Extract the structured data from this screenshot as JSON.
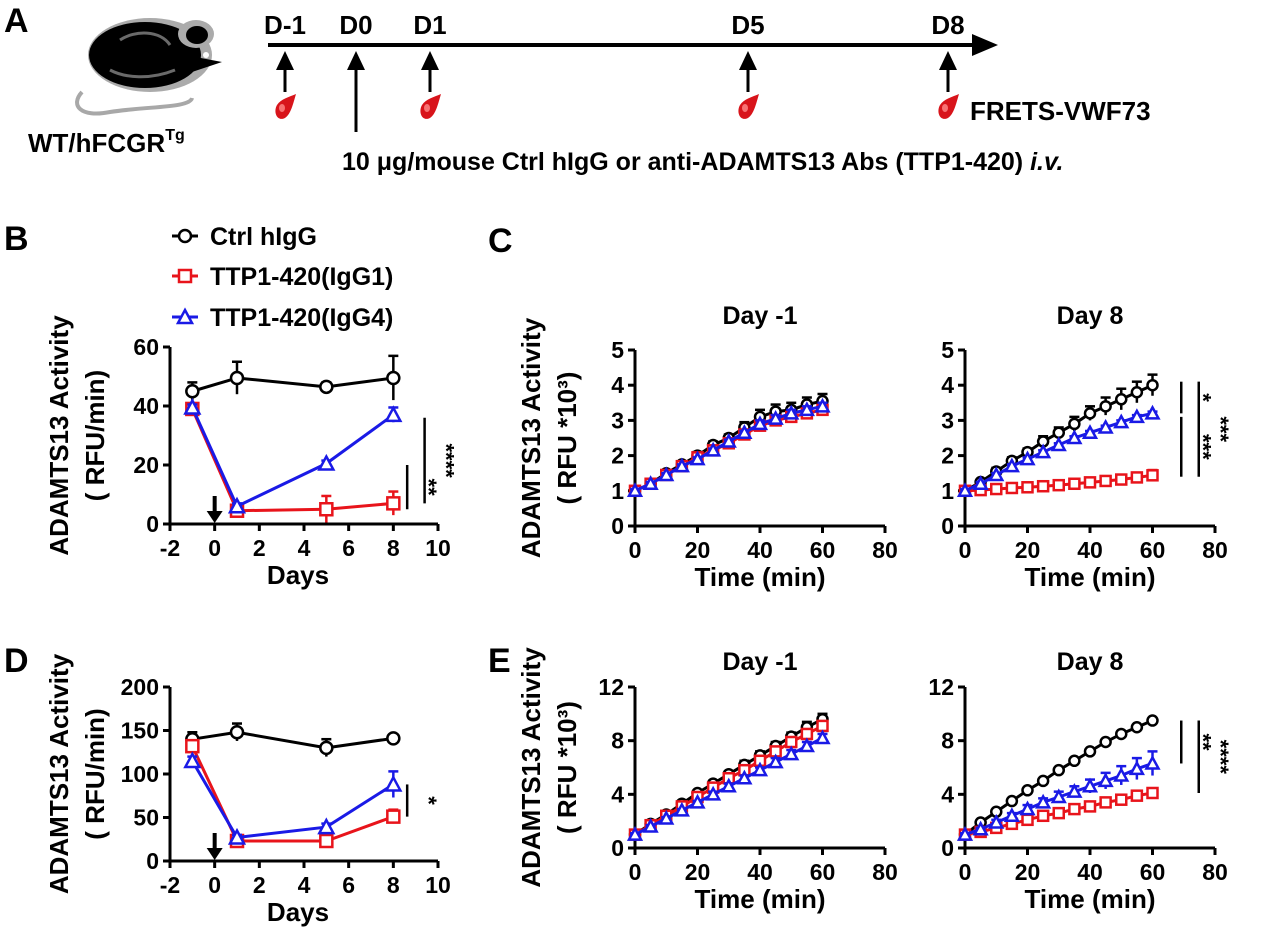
{
  "colors": {
    "ctrl": "#000000",
    "igg1": "#e8141b",
    "igg4": "#1a1ae6",
    "drop": "#d8141b"
  },
  "panel_a": {
    "letter": "A",
    "mouse_label_main": "WT/hFCGR",
    "mouse_label_sup": "Tg",
    "days": [
      "D-1",
      "D0",
      "D1",
      "D5",
      "D8"
    ],
    "drop_label": "FRETS-VWF73",
    "injection_text": "10 μg/mouse Ctrl hIgG or anti-ADAMTS13 Abs (TTP1-420)",
    "injection_suffix": "i.v."
  },
  "legend": [
    {
      "label": "Ctrl hIgG",
      "key": "ctrl"
    },
    {
      "label": "TTP1-420(IgG1)",
      "key": "igg1"
    },
    {
      "label": "TTP1-420(IgG4)",
      "key": "igg4"
    }
  ],
  "chart_data": [
    {
      "id": "B",
      "letter": "B",
      "type": "line",
      "xlabel": "Days",
      "ylabel": "ADAMTS13 Activity",
      "ylabel2": "( RFU/min)",
      "xlim": [
        -2,
        10
      ],
      "ylim": [
        0,
        60
      ],
      "xticks": [
        -2,
        0,
        2,
        4,
        6,
        8,
        10
      ],
      "yticks": [
        0,
        20,
        40,
        60
      ],
      "arrow_at_x": 0,
      "series": [
        {
          "name": "Ctrl hIgG",
          "key": "ctrl",
          "x": [
            -1,
            1,
            5,
            8
          ],
          "y": [
            45,
            49.5,
            46.5,
            49.5
          ],
          "err": [
            3,
            5.5,
            1.5,
            7.5
          ]
        },
        {
          "name": "TTP1-420(IgG1)",
          "key": "igg1",
          "x": [
            -1,
            1,
            5,
            8
          ],
          "y": [
            39,
            4.5,
            5,
            7
          ],
          "err": [
            1.5,
            2,
            4.5,
            4
          ]
        },
        {
          "name": "TTP1-420(IgG4)",
          "key": "igg4",
          "x": [
            -1,
            1,
            5,
            8
          ],
          "y": [
            39.5,
            6,
            20.5,
            37
          ],
          "err": [
            1,
            1,
            1,
            2.5
          ]
        }
      ],
      "significance": [
        {
          "label": "**",
          "x_frac": 0.885,
          "y1": 20,
          "y2": 5
        },
        {
          "label": "****",
          "x_frac": 0.95,
          "y1": 36,
          "y2": 7
        }
      ]
    },
    {
      "id": "C1",
      "letter": "C",
      "type": "line",
      "title": "Day -1",
      "xlabel": "Time (min)",
      "ylabel": "ADAMTS13 Activity",
      "ylabel2": "( RFU *10³)",
      "xlim": [
        0,
        80
      ],
      "ylim": [
        0,
        5
      ],
      "xticks": [
        0,
        20,
        40,
        60,
        80
      ],
      "yticks": [
        0,
        1,
        2,
        3,
        4,
        5
      ],
      "series": [
        {
          "name": "Ctrl hIgG",
          "key": "ctrl",
          "x": [
            0,
            5,
            10,
            15,
            20,
            25,
            30,
            35,
            40,
            45,
            50,
            55,
            60
          ],
          "y": [
            1.0,
            1.2,
            1.5,
            1.75,
            2.0,
            2.3,
            2.5,
            2.8,
            3.1,
            3.25,
            3.3,
            3.45,
            3.55
          ],
          "err": [
            0.05,
            0.05,
            0.05,
            0.05,
            0.1,
            0.1,
            0.1,
            0.15,
            0.2,
            0.2,
            0.2,
            0.2,
            0.2
          ]
        },
        {
          "name": "TTP1-420(IgG1)",
          "key": "igg1",
          "x": [
            0,
            5,
            10,
            15,
            20,
            25,
            30,
            35,
            40,
            45,
            50,
            55,
            60
          ],
          "y": [
            1.0,
            1.2,
            1.45,
            1.7,
            1.95,
            2.15,
            2.35,
            2.6,
            2.85,
            3.0,
            3.1,
            3.2,
            3.3
          ],
          "err": [
            0.05,
            0.05,
            0.05,
            0.05,
            0.05,
            0.05,
            0.05,
            0.05,
            0.1,
            0.1,
            0.1,
            0.1,
            0.1
          ]
        },
        {
          "name": "TTP1-420(IgG4)",
          "key": "igg4",
          "x": [
            0,
            5,
            10,
            15,
            20,
            25,
            30,
            35,
            40,
            45,
            50,
            55,
            60
          ],
          "y": [
            1.0,
            1.2,
            1.45,
            1.7,
            1.9,
            2.15,
            2.4,
            2.65,
            2.9,
            3.05,
            3.2,
            3.3,
            3.4
          ],
          "err": [
            0.05,
            0.05,
            0.05,
            0.05,
            0.05,
            0.05,
            0.05,
            0.05,
            0.1,
            0.1,
            0.1,
            0.1,
            0.1
          ]
        }
      ]
    },
    {
      "id": "C2",
      "letter": "",
      "type": "line",
      "title": "Day 8",
      "xlabel": "Time (min)",
      "ylabel": "",
      "ylabel2": "",
      "xlim": [
        0,
        80
      ],
      "ylim": [
        0,
        5
      ],
      "xticks": [
        0,
        20,
        40,
        60,
        80
      ],
      "yticks": [
        0,
        1,
        2,
        3,
        4,
        5
      ],
      "series": [
        {
          "name": "Ctrl hIgG",
          "key": "ctrl",
          "x": [
            0,
            5,
            10,
            15,
            20,
            25,
            30,
            35,
            40,
            45,
            50,
            55,
            60
          ],
          "y": [
            1.0,
            1.25,
            1.55,
            1.85,
            2.1,
            2.4,
            2.65,
            2.9,
            3.2,
            3.4,
            3.6,
            3.8,
            4.0
          ],
          "err": [
            0.05,
            0.05,
            0.1,
            0.1,
            0.1,
            0.15,
            0.15,
            0.2,
            0.2,
            0.25,
            0.3,
            0.3,
            0.3
          ]
        },
        {
          "name": "TTP1-420(IgG1)",
          "key": "igg1",
          "x": [
            0,
            5,
            10,
            15,
            20,
            25,
            30,
            35,
            40,
            45,
            50,
            55,
            60
          ],
          "y": [
            1.0,
            1.02,
            1.05,
            1.08,
            1.1,
            1.13,
            1.16,
            1.2,
            1.24,
            1.28,
            1.32,
            1.38,
            1.44
          ],
          "err": [
            0.05,
            0.05,
            0.05,
            0.05,
            0.05,
            0.05,
            0.05,
            0.05,
            0.1,
            0.1,
            0.1,
            0.1,
            0.15
          ]
        },
        {
          "name": "TTP1-420(IgG4)",
          "key": "igg4",
          "x": [
            0,
            5,
            10,
            15,
            20,
            25,
            30,
            35,
            40,
            45,
            50,
            55,
            60
          ],
          "y": [
            1.0,
            1.2,
            1.45,
            1.7,
            1.9,
            2.1,
            2.3,
            2.5,
            2.65,
            2.8,
            2.95,
            3.1,
            3.2
          ],
          "err": [
            0.05,
            0.05,
            0.05,
            0.05,
            0.05,
            0.05,
            0.05,
            0.05,
            0.05,
            0.05,
            0.05,
            0.05,
            0.05
          ]
        }
      ],
      "significance": [
        {
          "label": "*",
          "x_frac": 0.865,
          "y1": 4.1,
          "y2": 3.2
        },
        {
          "label": "***",
          "x_frac": 0.865,
          "y1": 3.1,
          "y2": 1.4
        },
        {
          "label": "***",
          "x_frac": 0.935,
          "y1": 4.1,
          "y2": 1.4
        }
      ]
    },
    {
      "id": "D",
      "letter": "D",
      "type": "line",
      "xlabel": "Days",
      "ylabel": "ADAMTS13 Activity",
      "ylabel2": "( RFU/min)",
      "xlim": [
        -2,
        10
      ],
      "ylim": [
        0,
        200
      ],
      "xticks": [
        -2,
        0,
        2,
        4,
        6,
        8,
        10
      ],
      "yticks": [
        0,
        50,
        100,
        150,
        200
      ],
      "arrow_at_x": 0,
      "series": [
        {
          "name": "Ctrl hIgG",
          "key": "ctrl",
          "x": [
            -1,
            1,
            5,
            8
          ],
          "y": [
            140,
            148,
            130,
            141
          ],
          "err": [
            8,
            10,
            10,
            4
          ]
        },
        {
          "name": "TTP1-420(IgG1)",
          "key": "igg1",
          "x": [
            -1,
            1,
            5,
            8
          ],
          "y": [
            132,
            23,
            23,
            51
          ],
          "err": [
            6,
            3,
            5,
            8
          ]
        },
        {
          "name": "TTP1-420(IgG4)",
          "key": "igg4",
          "x": [
            -1,
            1,
            5,
            8
          ],
          "y": [
            115,
            27,
            39,
            88
          ],
          "err": [
            5,
            3,
            4,
            15
          ]
        }
      ],
      "significance": [
        {
          "label": "*",
          "x_frac": 0.885,
          "y1": 88,
          "y2": 51
        }
      ]
    },
    {
      "id": "E1",
      "letter": "E",
      "type": "line",
      "title": "Day -1",
      "xlabel": "Time (min)",
      "ylabel": "ADAMTS13 Activity",
      "ylabel2": "( RFU *10³)",
      "xlim": [
        0,
        80
      ],
      "ylim": [
        0,
        12
      ],
      "xticks": [
        0,
        20,
        40,
        60,
        80
      ],
      "yticks": [
        0,
        4,
        8,
        12
      ],
      "series": [
        {
          "name": "Ctrl hIgG",
          "key": "ctrl",
          "x": [
            0,
            5,
            10,
            15,
            20,
            25,
            30,
            35,
            40,
            45,
            50,
            55,
            60
          ],
          "y": [
            1.0,
            1.8,
            2.5,
            3.3,
            4.1,
            4.8,
            5.5,
            6.2,
            6.9,
            7.6,
            8.3,
            9.0,
            9.6
          ],
          "err": [
            0.1,
            0.1,
            0.1,
            0.2,
            0.2,
            0.2,
            0.2,
            0.3,
            0.3,
            0.3,
            0.3,
            0.4,
            0.4
          ]
        },
        {
          "name": "TTP1-420(IgG1)",
          "key": "igg1",
          "x": [
            0,
            5,
            10,
            15,
            20,
            25,
            30,
            35,
            40,
            45,
            50,
            55,
            60
          ],
          "y": [
            1.0,
            1.7,
            2.4,
            3.1,
            3.8,
            4.5,
            5.2,
            5.8,
            6.5,
            7.2,
            7.9,
            8.5,
            9.1
          ],
          "err": [
            0.1,
            0.1,
            0.1,
            0.1,
            0.2,
            0.2,
            0.2,
            0.2,
            0.3,
            0.3,
            0.3,
            0.3,
            0.3
          ]
        },
        {
          "name": "TTP1-420(IgG4)",
          "key": "igg4",
          "x": [
            0,
            5,
            10,
            15,
            20,
            25,
            30,
            35,
            40,
            45,
            50,
            55,
            60
          ],
          "y": [
            1.0,
            1.6,
            2.2,
            2.8,
            3.4,
            4.0,
            4.6,
            5.2,
            5.8,
            6.4,
            7.0,
            7.6,
            8.2
          ],
          "err": [
            0.1,
            0.1,
            0.1,
            0.1,
            0.1,
            0.2,
            0.2,
            0.2,
            0.2,
            0.3,
            0.3,
            0.3,
            0.3
          ]
        }
      ]
    },
    {
      "id": "E2",
      "letter": "",
      "type": "line",
      "title": "Day 8",
      "xlabel": "Time (min)",
      "ylabel": "",
      "ylabel2": "",
      "xlim": [
        0,
        80
      ],
      "ylim": [
        0,
        12
      ],
      "xticks": [
        0,
        20,
        40,
        60,
        80
      ],
      "yticks": [
        0,
        4,
        8,
        12
      ],
      "series": [
        {
          "name": "Ctrl hIgG",
          "key": "ctrl",
          "x": [
            0,
            5,
            10,
            15,
            20,
            25,
            30,
            35,
            40,
            45,
            50,
            55,
            60
          ],
          "y": [
            1.0,
            1.9,
            2.7,
            3.5,
            4.3,
            5.0,
            5.8,
            6.5,
            7.2,
            7.9,
            8.5,
            9.0,
            9.5
          ],
          "err": [
            0.1,
            0.1,
            0.1,
            0.1,
            0.1,
            0.1,
            0.1,
            0.1,
            0.1,
            0.1,
            0.1,
            0.1,
            0.1
          ]
        },
        {
          "name": "TTP1-420(IgG1)",
          "key": "igg1",
          "x": [
            0,
            5,
            10,
            15,
            20,
            25,
            30,
            35,
            40,
            45,
            50,
            55,
            60
          ],
          "y": [
            1.0,
            1.2,
            1.5,
            1.8,
            2.1,
            2.4,
            2.6,
            2.9,
            3.1,
            3.4,
            3.6,
            3.9,
            4.1
          ],
          "err": [
            0.1,
            0.1,
            0.1,
            0.1,
            0.1,
            0.1,
            0.1,
            0.2,
            0.2,
            0.2,
            0.2,
            0.3,
            0.3
          ]
        },
        {
          "name": "TTP1-420(IgG4)",
          "key": "igg4",
          "x": [
            0,
            5,
            10,
            15,
            20,
            25,
            30,
            35,
            40,
            45,
            50,
            55,
            60
          ],
          "y": [
            1.0,
            1.4,
            1.9,
            2.4,
            2.9,
            3.4,
            3.8,
            4.2,
            4.6,
            5.0,
            5.4,
            5.9,
            6.3
          ],
          "err": [
            0.1,
            0.1,
            0.2,
            0.2,
            0.3,
            0.3,
            0.4,
            0.4,
            0.5,
            0.6,
            0.7,
            0.8,
            0.9
          ]
        }
      ],
      "significance": [
        {
          "label": "**",
          "x_frac": 0.865,
          "y1": 9.5,
          "y2": 6.3
        },
        {
          "label": "****",
          "x_frac": 0.935,
          "y1": 9.5,
          "y2": 4.1
        }
      ]
    }
  ]
}
